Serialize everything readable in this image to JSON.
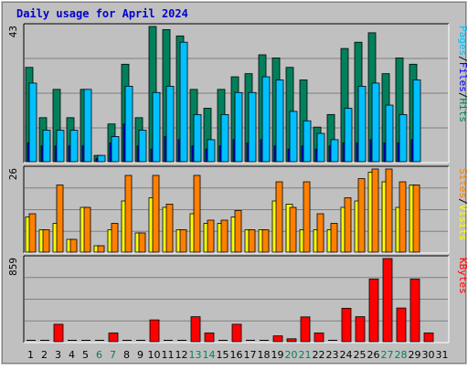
{
  "chart_data": {
    "title": "Daily usage for April 2024",
    "type": "bar",
    "days": [
      "1",
      "2",
      "3",
      "4",
      "5",
      "6",
      "7",
      "8",
      "9",
      "10",
      "11",
      "12",
      "13",
      "14",
      "15",
      "16",
      "17",
      "18",
      "19",
      "20",
      "21",
      "22",
      "23",
      "24",
      "25",
      "26",
      "27",
      "28",
      "29",
      "30",
      "31"
    ],
    "weekend_days": [
      "6",
      "7",
      "13",
      "14",
      "20",
      "21",
      "27",
      "28"
    ],
    "colors": {
      "background": "#c0c0c0",
      "hits": "#00805c",
      "files": "#0000ff",
      "pages": "#00c0ff",
      "visits": "#ffff00",
      "sites": "#ff8000",
      "kbytes": "#ff0000",
      "weekday_label": "#000000",
      "weekend_label": "#00805c",
      "title": "#0000cc"
    },
    "panels": [
      {
        "max_label": "43",
        "y_max": 43,
        "legend": [
          {
            "text": "Pages",
            "color": "#00c0ff"
          },
          {
            "text": "/",
            "color": "#000000"
          },
          {
            "text": "Files",
            "color": "#0000ff"
          },
          {
            "text": "/",
            "color": "#000000"
          },
          {
            "text": "Hits",
            "color": "#00805c"
          }
        ],
        "series": [
          {
            "name": "Hits",
            "color": "#00805c",
            "values": [
              30,
              14,
              23,
              14,
              23,
              2,
              12,
              31,
              14,
              43,
              42,
              40,
              23,
              17,
              23,
              27,
              28,
              34,
              33,
              30,
              26,
              11,
              15,
              36,
              38,
              41,
              28,
              33,
              31,
              0
            ]
          },
          {
            "name": "Files",
            "color": "#0000ff",
            "values": [
              6,
              5,
              5,
              5,
              5,
              1,
              6,
              12,
              5,
              4,
              8,
              7,
              5,
              4,
              5,
              7,
              6,
              7,
              5,
              4,
              5,
              4,
              5,
              6,
              6,
              7,
              6,
              6,
              7,
              0
            ]
          },
          {
            "name": "Pages",
            "color": "#00c0ff",
            "values": [
              25,
              10,
              10,
              10,
              23,
              2,
              8,
              24,
              10,
              22,
              24,
              38,
              15,
              7,
              15,
              22,
              22,
              27,
              26,
              16,
              13,
              9,
              7,
              17,
              24,
              25,
              18,
              15,
              26,
              0
            ]
          }
        ]
      },
      {
        "max_label": "26",
        "y_max": 26,
        "legend": [
          {
            "text": "Sites",
            "color": "#ff8000"
          },
          {
            "text": "/",
            "color": "#000000"
          },
          {
            "text": "Visits",
            "color": "#ffff00"
          }
        ],
        "series": [
          {
            "name": "Visits",
            "color": "#ffff00",
            "values": [
              11,
              7,
              9,
              4,
              14,
              2,
              7,
              16,
              6,
              17,
              14,
              7,
              12,
              9,
              9,
              11,
              7,
              7,
              16,
              15,
              7,
              7,
              7,
              14,
              16,
              25,
              22,
              14,
              21,
              0
            ]
          },
          {
            "name": "Sites",
            "color": "#ff8000",
            "values": [
              12,
              7,
              21,
              4,
              14,
              2,
              9,
              24,
              6,
              24,
              15,
              7,
              24,
              10,
              10,
              13,
              7,
              7,
              22,
              14,
              22,
              12,
              9,
              17,
              23,
              26,
              26,
              22,
              21,
              0
            ]
          }
        ]
      },
      {
        "max_label": "859",
        "y_max": 859,
        "legend": [
          {
            "text": "KBytes",
            "color": "#ff0000"
          }
        ],
        "series": [
          {
            "name": "KBytes",
            "color": "#ff0000",
            "values": [
              0,
              0,
              180,
              0,
              0,
              0,
              90,
              0,
              0,
              225,
              0,
              0,
              258,
              90,
              0,
              180,
              0,
              0,
              60,
              30,
              256,
              90,
              0,
              345,
              258,
              648,
              859,
              348,
              648,
              90
            ]
          }
        ]
      }
    ]
  }
}
